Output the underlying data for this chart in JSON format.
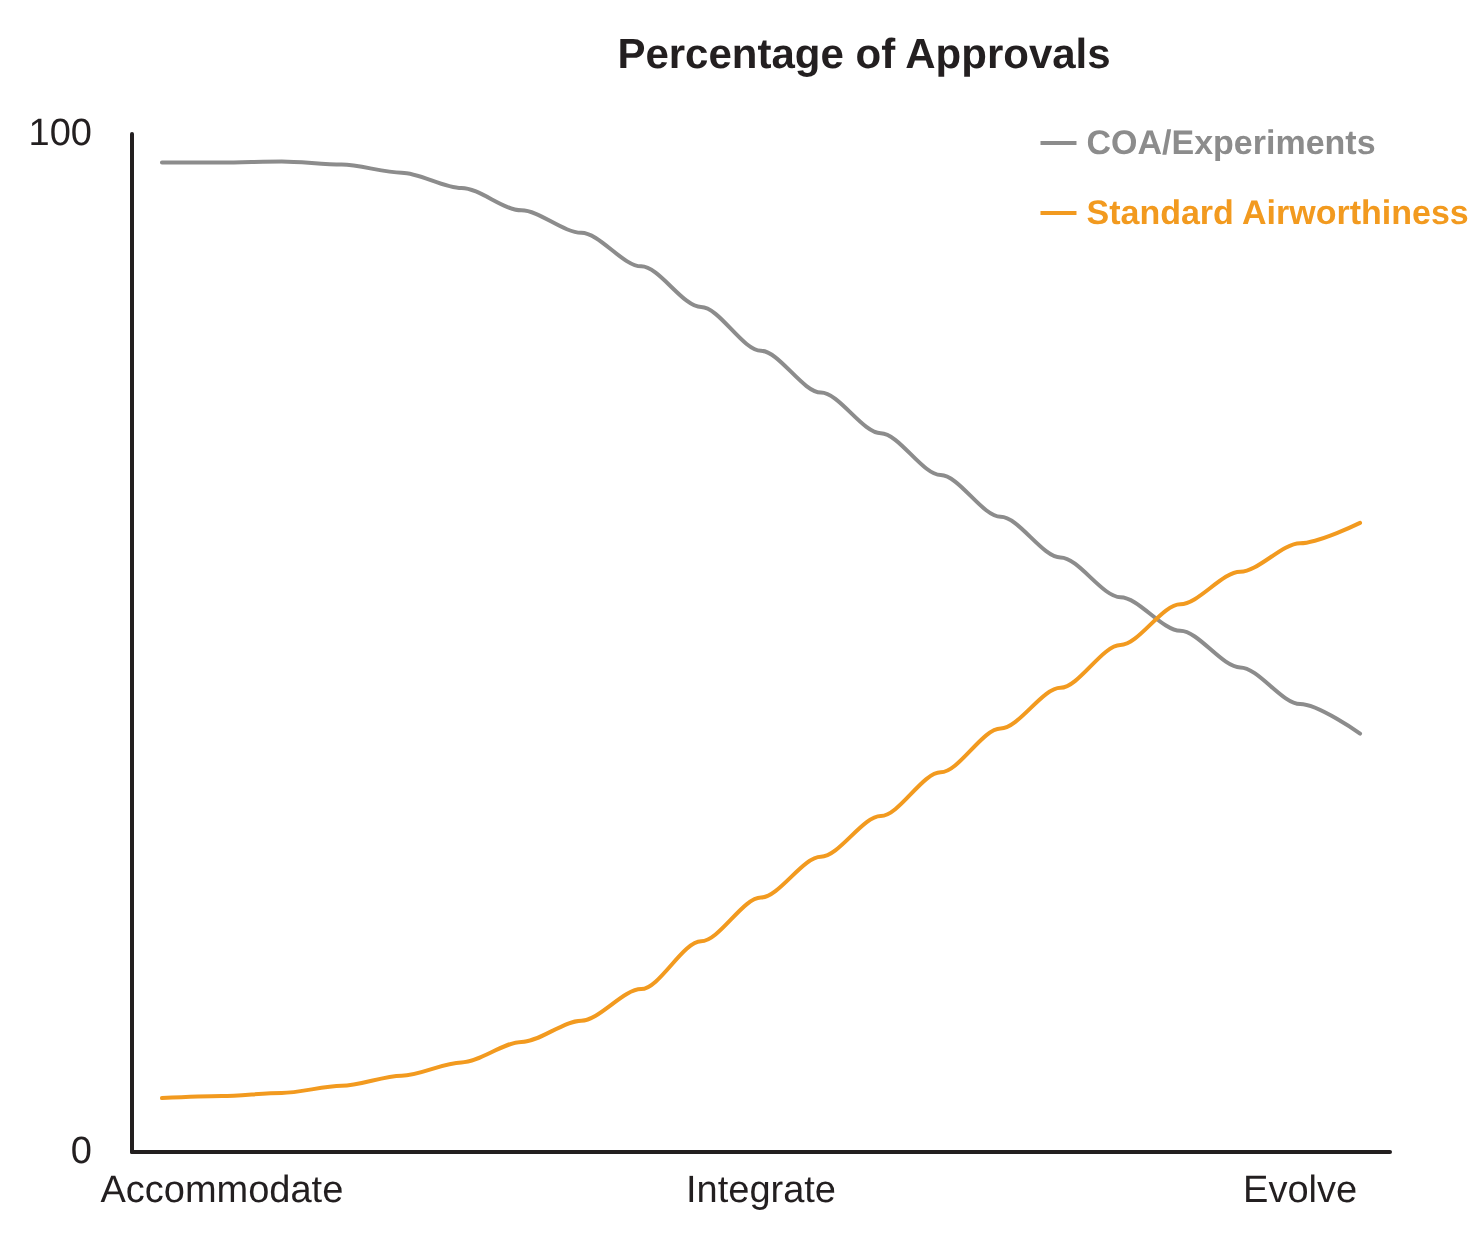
{
  "chart_data": {
    "type": "line",
    "title": "Percentage of Approvals",
    "categories": [
      null,
      "Accommodate",
      null,
      null,
      null,
      null,
      null,
      null,
      null,
      null,
      "Integrate",
      null,
      null,
      null,
      null,
      null,
      null,
      null,
      null,
      "Evolve",
      null
    ],
    "series": [
      {
        "name": "COA/Experiments",
        "color": "#8c8c8c",
        "values": [
          97.2,
          97.2,
          97.3,
          97.0,
          96.2,
          94.7,
          92.5,
          90.3,
          87,
          83,
          78.7,
          74.6,
          70.6,
          66.5,
          62.4,
          58.4,
          54.5,
          51.2,
          47.6,
          44,
          41.1
        ]
      },
      {
        "name": "Standard Airworthiness",
        "color": "#f29a1f",
        "values": [
          5.3,
          5.5,
          5.8,
          6.5,
          7.5,
          8.8,
          10.8,
          12.9,
          16,
          20.7,
          25,
          29,
          33,
          37.3,
          41.6,
          45.6,
          49.8,
          53.8,
          57,
          59.8,
          61.8
        ]
      }
    ],
    "ylim": [
      0,
      100
    ],
    "yticks": [
      0,
      100
    ],
    "legend": "top right",
    "grid": false,
    "marker": "none",
    "line_style": "solid"
  }
}
